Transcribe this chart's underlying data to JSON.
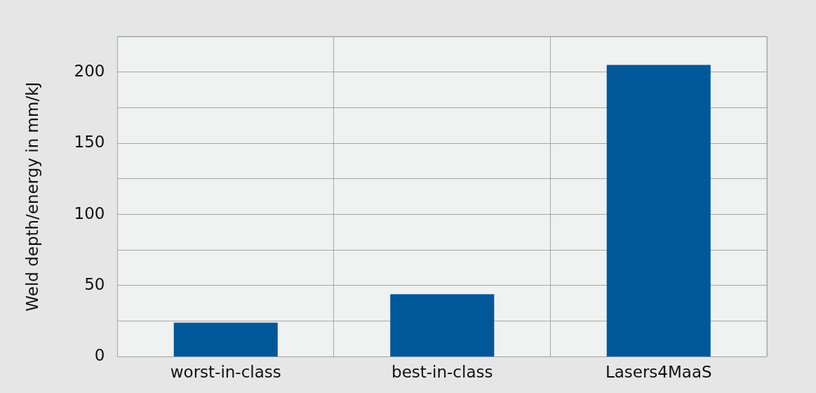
{
  "chart_data": {
    "type": "bar",
    "ylabel": "Weld depth/energy in mm/kJ",
    "categories": [
      "worst-in-class",
      "best-in-class",
      "Lasers4MaaS"
    ],
    "values": [
      24,
      44,
      205
    ],
    "color": "#00589a",
    "ylim": [
      0,
      225
    ],
    "yticks": [
      0,
      {
        "value": 25,
        "label": null
      },
      50,
      {
        "value": 75,
        "label": null
      },
      100,
      {
        "value": 125,
        "label": null
      },
      150,
      {
        "value": 175,
        "label": null
      },
      200,
      {
        "value": 225,
        "label": null
      }
    ],
    "grid": true,
    "legend": false
  }
}
